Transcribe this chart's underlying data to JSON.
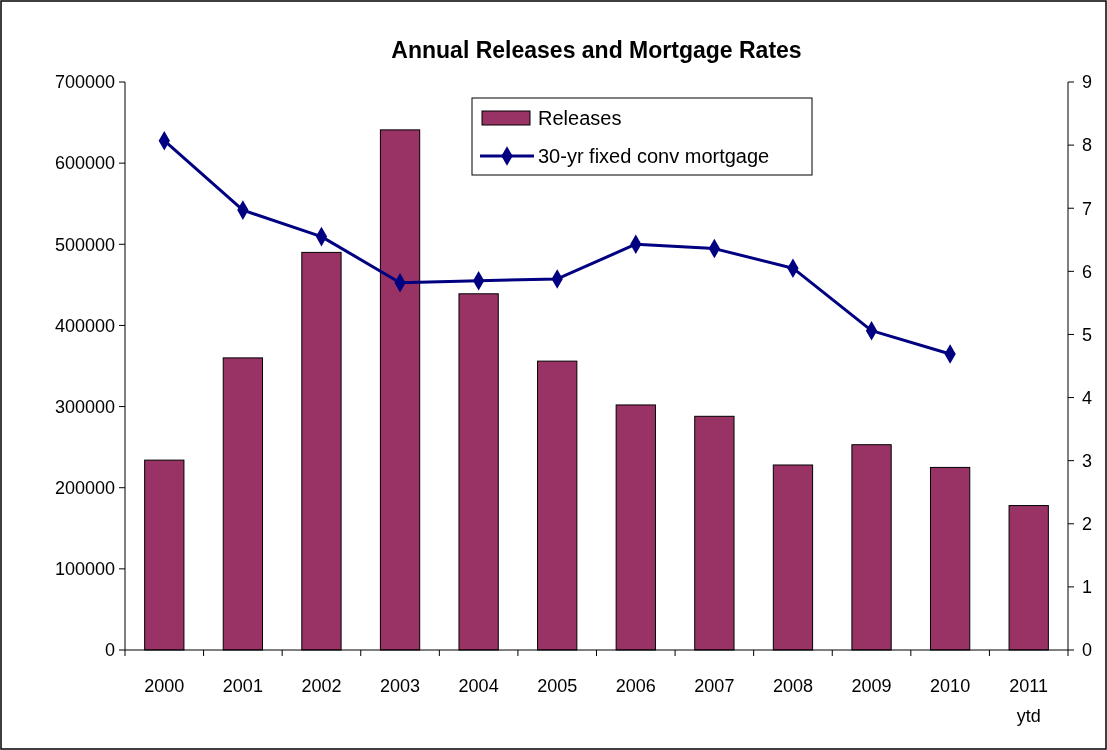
{
  "chart_data": {
    "type": "bar",
    "title": "Annual Releases and Mortgage Rates",
    "categories": [
      "2000",
      "2001",
      "2002",
      "2003",
      "2004",
      "2005",
      "2006",
      "2007",
      "2008",
      "2009",
      "2010",
      "2011\nytd"
    ],
    "series": [
      {
        "name": "Releases",
        "color": "#993366",
        "values": [
          234000,
          360000,
          490000,
          641000,
          439000,
          356000,
          302000,
          288000,
          228000,
          253000,
          225000,
          178000
        ]
      },
      {
        "name": "30-yr fixed conv mortgage",
        "type": "line",
        "axis": "y2",
        "color": "#000080",
        "marker": "diamond",
        "values": [
          8.07,
          6.97,
          6.55,
          5.82,
          5.85,
          5.88,
          6.43,
          6.36,
          6.05,
          5.06,
          4.69,
          null
        ]
      }
    ],
    "ylim": [
      0,
      700000
    ],
    "yticks": [
      0,
      100000,
      200000,
      300000,
      400000,
      500000,
      600000,
      700000
    ],
    "y2lim": [
      0,
      9
    ],
    "y2ticks": [
      0,
      1,
      2,
      3,
      4,
      5,
      6,
      7,
      8,
      9
    ],
    "legend": "top",
    "grid": false
  }
}
